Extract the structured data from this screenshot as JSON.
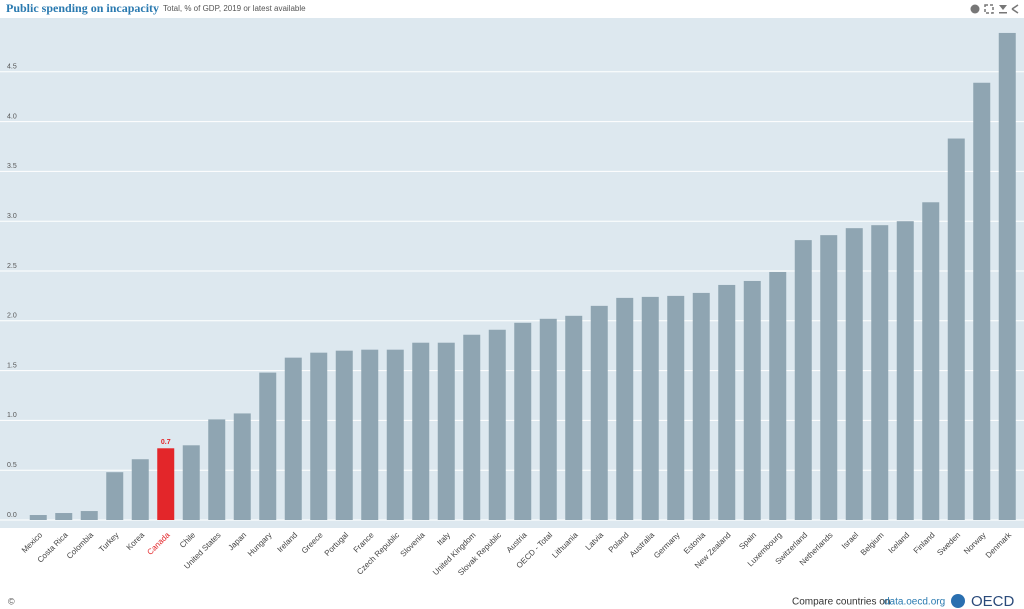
{
  "chart_data": {
    "type": "bar",
    "title": "Public spending on incapacity",
    "subtitle": "Total, % of GDP, 2019 or latest available",
    "categories": [
      "Mexico",
      "Costa Rica",
      "Colombia",
      "Turkey",
      "Korea",
      "Canada",
      "Chile",
      "United States",
      "Japan",
      "Hungary",
      "Ireland",
      "Greece",
      "Portugal",
      "France",
      "Czech Republic",
      "Slovenia",
      "Italy",
      "United Kingdom",
      "Slovak Republic",
      "Austria",
      "OECD - Total",
      "Lithuania",
      "Latvia",
      "Poland",
      "Australia",
      "Germany",
      "Estonia",
      "New Zealand",
      "Spain",
      "Luxembourg",
      "Switzerland",
      "Netherlands",
      "Israel",
      "Belgium",
      "Iceland",
      "Finland",
      "Sweden",
      "Norway",
      "Denmark"
    ],
    "values": [
      0.05,
      0.07,
      0.09,
      0.48,
      0.61,
      0.72,
      0.75,
      1.01,
      1.07,
      1.48,
      1.63,
      1.68,
      1.7,
      1.71,
      1.71,
      1.78,
      1.78,
      1.86,
      1.91,
      1.98,
      2.02,
      2.05,
      2.15,
      2.23,
      2.24,
      2.25,
      2.28,
      2.36,
      2.4,
      2.49,
      2.81,
      2.86,
      2.93,
      2.96,
      3.0,
      3.19,
      3.83,
      4.39,
      4.89
    ],
    "value_labels": [
      null,
      null,
      null,
      null,
      null,
      "0.7",
      null,
      null,
      null,
      null,
      null,
      null,
      null,
      null,
      null,
      null,
      null,
      null,
      null,
      null,
      null,
      null,
      null,
      null,
      null,
      null,
      null,
      null,
      null,
      null,
      null,
      null,
      null,
      null,
      null,
      null,
      null,
      null,
      null
    ],
    "color": "#8fa5b2",
    "colors": [
      "#8fa5b2",
      "#8fa5b2",
      "#8fa5b2",
      "#8fa5b2",
      "#8fa5b2",
      "#e3262a",
      "#8fa5b2",
      "#8fa5b2",
      "#8fa5b2",
      "#8fa5b2",
      "#8fa5b2",
      "#8fa5b2",
      "#8fa5b2",
      "#8fa5b2",
      "#8fa5b2",
      "#8fa5b2",
      "#8fa5b2",
      "#8fa5b2",
      "#8fa5b2",
      "#8fa5b2",
      "#8fa5b2",
      "#8fa5b2",
      "#8fa5b2",
      "#8fa5b2",
      "#8fa5b2",
      "#8fa5b2",
      "#8fa5b2",
      "#8fa5b2",
      "#8fa5b2",
      "#8fa5b2",
      "#8fa5b2",
      "#8fa5b2",
      "#8fa5b2",
      "#8fa5b2",
      "#8fa5b2",
      "#8fa5b2",
      "#8fa5b2",
      "#8fa5b2",
      "#8fa5b2"
    ],
    "ylim": [
      0,
      5.02
    ],
    "yticks": [
      {
        "value": 0,
        "label": "0.0"
      },
      0.5,
      {
        "value": 1,
        "label": "1.0"
      },
      1.5,
      {
        "value": 2,
        "label": "2.0"
      },
      2.5,
      {
        "value": 3,
        "label": "3.0"
      },
      3.5,
      {
        "value": 4,
        "label": "4.0"
      },
      4.5
    ],
    "grid": true
  },
  "footer": {
    "copyright": "©",
    "text": "Compare countries on",
    "link": "data.oecd.org",
    "logo": "OECD"
  }
}
